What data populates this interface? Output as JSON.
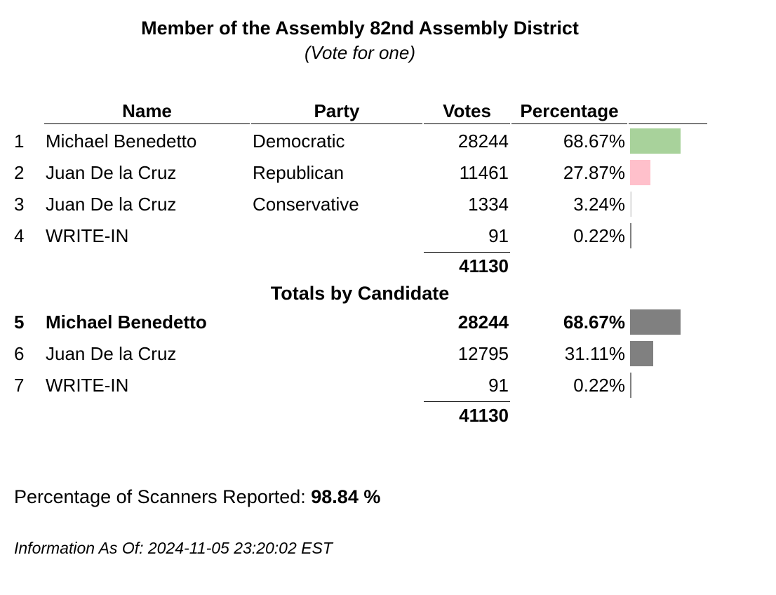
{
  "title": "Member of the Assembly 82nd Assembly District",
  "subtitle": "(Vote for one)",
  "headers": {
    "name": "Name",
    "party": "Party",
    "votes": "Votes",
    "percentage": "Percentage"
  },
  "rows": [
    {
      "num": "1",
      "name": "Michael Benedetto",
      "party": "Democratic",
      "votes": "28244",
      "pct": "68.67%",
      "pct_value": 68.67,
      "bar_color": "#a8d29b"
    },
    {
      "num": "2",
      "name": "Juan De la Cruz",
      "party": "Republican",
      "votes": "11461",
      "pct": "27.87%",
      "pct_value": 27.87,
      "bar_color": "#ffc0cb"
    },
    {
      "num": "3",
      "name": "Juan De la Cruz",
      "party": "Conservative",
      "votes": "1334",
      "pct": "3.24%",
      "pct_value": 3.24,
      "bar_color": "#e8e8e8"
    },
    {
      "num": "4",
      "name": "WRITE-IN",
      "party": "",
      "votes": "91",
      "pct": "0.22%",
      "pct_value": 0.22,
      "bar_color": "#808080"
    }
  ],
  "total_votes": "41130",
  "section_title": "Totals by Candidate",
  "candidate_rows": [
    {
      "num": "5",
      "name": "Michael Benedetto",
      "votes": "28244",
      "pct": "68.67%",
      "pct_value": 68.67,
      "bar_color": "#808080",
      "bold": true
    },
    {
      "num": "6",
      "name": "Juan De la Cruz",
      "votes": "12795",
      "pct": "31.11%",
      "pct_value": 31.11,
      "bar_color": "#808080",
      "bold": false
    },
    {
      "num": "7",
      "name": "WRITE-IN",
      "votes": "91",
      "pct": "0.22%",
      "pct_value": 0.22,
      "bar_color": "#808080",
      "bold": false
    }
  ],
  "candidate_total_votes": "41130",
  "scanners_label": "Percentage of Scanners Reported: ",
  "scanners_value": "98.84 %",
  "info_as_of": "Information As Of: 2024-11-05 23:20:02 EST"
}
